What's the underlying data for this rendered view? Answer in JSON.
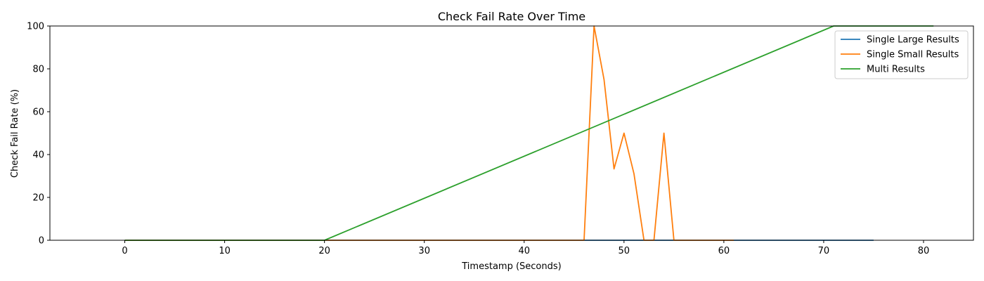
{
  "chart_data": {
    "type": "line",
    "title": "Check Fail Rate Over Time",
    "xlabel": "Timestamp (Seconds)",
    "ylabel": "Check Fail Rate (%)",
    "xlim": [
      -7.5,
      85
    ],
    "ylim": [
      0,
      100
    ],
    "xticks": [
      0,
      10,
      20,
      30,
      40,
      50,
      60,
      70,
      80
    ],
    "yticks": [
      0,
      20,
      40,
      60,
      80,
      100
    ],
    "grid": false,
    "legend_position": "top-right",
    "series": [
      {
        "name": "Single Large Results",
        "color": "#1f77b4",
        "x": [
          0,
          75
        ],
        "y": [
          0,
          0
        ]
      },
      {
        "name": "Single Small Results",
        "color": "#ff7f0e",
        "x": [
          0,
          46,
          47,
          48,
          49,
          50,
          51,
          52,
          53,
          54,
          55,
          61
        ],
        "y": [
          0,
          0,
          100,
          75,
          33.3,
          50,
          31,
          0,
          0,
          50,
          0,
          0
        ]
      },
      {
        "name": "Multi Results",
        "color": "#2ca02c",
        "x": [
          0,
          20,
          71,
          81
        ],
        "y": [
          0,
          0,
          100,
          100
        ]
      }
    ]
  }
}
